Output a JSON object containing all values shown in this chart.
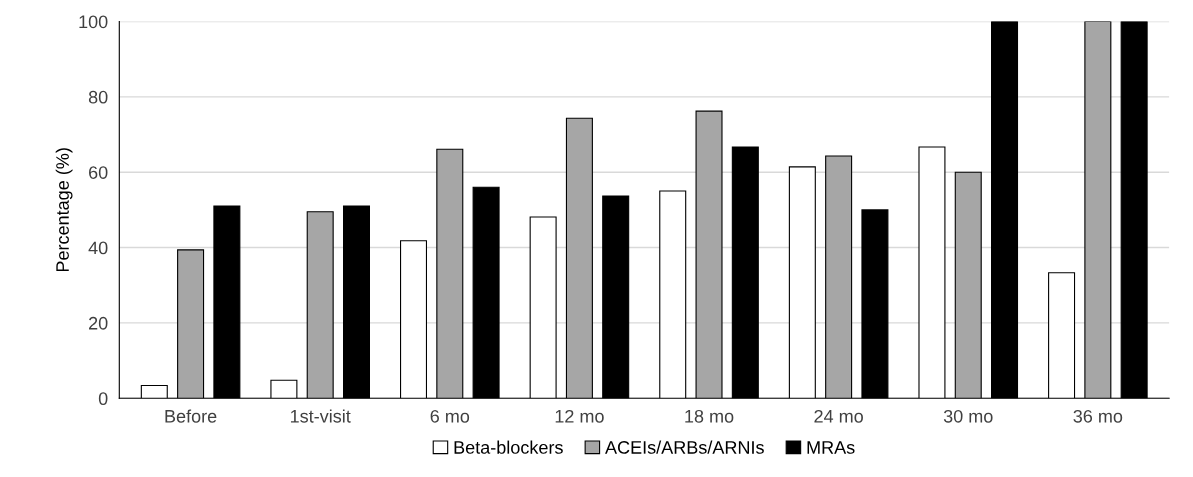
{
  "chart_data": {
    "type": "bar",
    "ylabel": "Percentage (%)",
    "categories": [
      "Before",
      "1st-visit",
      "6 mo",
      "12 mo",
      "18 mo",
      "24 mo",
      "30 mo",
      "36 mo"
    ],
    "series": [
      {
        "name": "Beta-blockers",
        "color": "#ffffff",
        "values": [
          3.4,
          4.8,
          41.8,
          48.1,
          55,
          61.4,
          66.7,
          33.3
        ]
      },
      {
        "name": "ACEIs/ARBs/ARNIs",
        "color": "#a6a6a6",
        "values": [
          39.4,
          49.5,
          66.1,
          74.3,
          76.2,
          64.3,
          60,
          100
        ]
      },
      {
        "name": "MRAs",
        "color": "#000000",
        "values": [
          51,
          51,
          56,
          53.7,
          66.7,
          50,
          100,
          100
        ]
      }
    ],
    "ylim": [
      0,
      100
    ],
    "yticks": [
      0,
      20,
      40,
      60,
      80,
      100
    ],
    "grid": "y",
    "legend": "bottom"
  }
}
